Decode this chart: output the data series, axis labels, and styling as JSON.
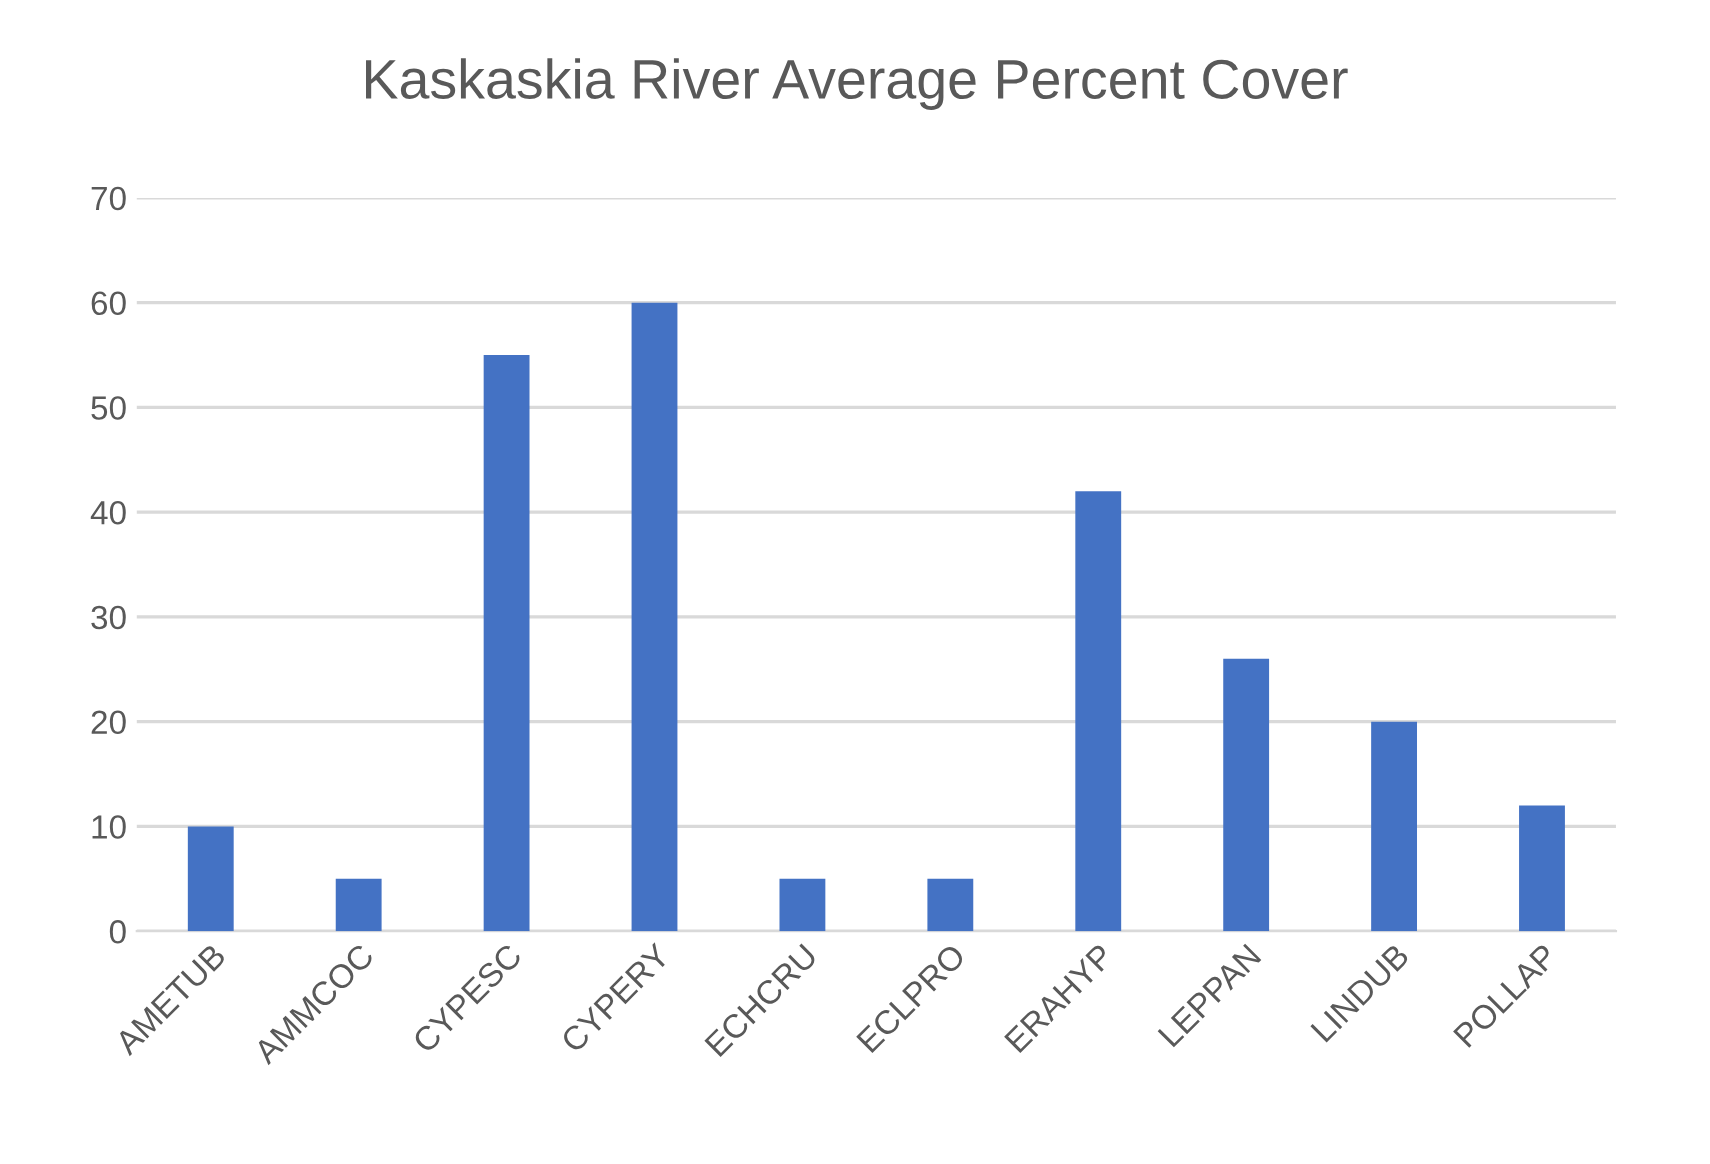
{
  "chart_data": {
    "type": "bar",
    "title": "Kaskaskia River Average Percent Cover",
    "categories": [
      "AMETUB",
      "AMMCOC",
      "CYPESC",
      "CYPERY",
      "ECHCRU",
      "ECLPRO",
      "ERAHYP",
      "LEPPAN",
      "LINDUB",
      "POLLAP"
    ],
    "values": [
      10,
      5,
      55,
      60,
      5,
      5,
      42,
      26,
      20,
      12
    ],
    "color": "#4472c4",
    "ylim": [
      0,
      70
    ],
    "yticks": [
      0,
      10,
      20,
      30,
      40,
      50,
      60,
      70
    ],
    "grid": "y"
  }
}
